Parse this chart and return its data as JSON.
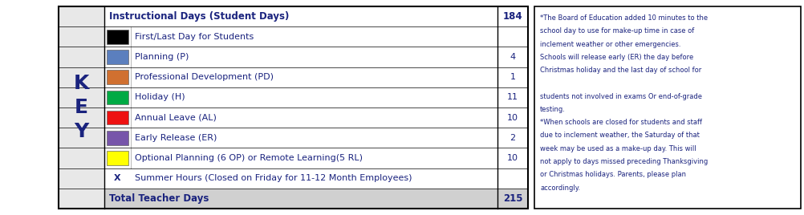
{
  "rows": [
    {
      "color": null,
      "label": "Instructional Days (Student Days)",
      "value": "184",
      "bold": true,
      "bg": "#ffffff",
      "has_swatch": false
    },
    {
      "color": "#000000",
      "label": "First/Last Day for Students",
      "value": "",
      "bold": false,
      "bg": "#ffffff",
      "has_swatch": true
    },
    {
      "color": "#5b7fbe",
      "label": "Planning (P)",
      "value": "4",
      "bold": false,
      "bg": "#ffffff",
      "has_swatch": true
    },
    {
      "color": "#d07030",
      "label": "Professional Development (PD)",
      "value": "1",
      "bold": false,
      "bg": "#ffffff",
      "has_swatch": true
    },
    {
      "color": "#00aa44",
      "label": "Holiday (H)",
      "value": "11",
      "bold": false,
      "bg": "#ffffff",
      "has_swatch": true
    },
    {
      "color": "#ee1111",
      "label": "Annual Leave (AL)",
      "value": "10",
      "bold": false,
      "bg": "#ffffff",
      "has_swatch": true
    },
    {
      "color": "#7755aa",
      "label": "Early Release (ER)",
      "value": "2",
      "bold": false,
      "bg": "#ffffff",
      "has_swatch": true
    },
    {
      "color": "#ffff00",
      "label": "Optional Planning (6 OP) or Remote Learning(5 RL)",
      "value": "10",
      "bold": false,
      "bg": "#ffffff",
      "has_swatch": true
    },
    {
      "color": "X",
      "label": "Summer Hours (Closed on Friday for 11-12 Month Employees)",
      "value": "",
      "bold": false,
      "bg": "#ffffff",
      "has_swatch": false
    },
    {
      "color": null,
      "label": "Total Teacher Days",
      "value": "215",
      "bold": true,
      "bg": "#d0d0d0",
      "has_swatch": false
    }
  ],
  "key_bg": "#e8e8e8",
  "note_lines": [
    {
      "text": "*The Board of Education added 10 minutes to the",
      "style": "normal"
    },
    {
      "text": "school day to use for make-up time in case of",
      "style": "normal"
    },
    {
      "text": "inclement weather or other emergencies.",
      "style": "normal"
    },
    {
      "text": "Schools will release early (ER) the day before",
      "style": "normal"
    },
    {
      "text": "Christmas holiday and the last day of school for",
      "style": "normal"
    },
    {
      "text": "",
      "style": "normal"
    },
    {
      "text": "students not involved in exams Or end-of-grade",
      "style": "normal"
    },
    {
      "text": "testing.",
      "style": "normal"
    },
    {
      "text": "*When schools are closed for students and staff",
      "style": "normal"
    },
    {
      "text": "due to inclement weather, the Saturday of that",
      "style": "normal"
    },
    {
      "text": "week may be used as a make-up day. This will",
      "style": "normal"
    },
    {
      "text": "not apply to days missed preceding Thanksgiving",
      "style": "normal"
    },
    {
      "text": "or Christmas holidays. Parents, please plan",
      "style": "normal"
    },
    {
      "text": "accordingly.",
      "style": "normal"
    }
  ],
  "text_color": "#1a237e",
  "border_color": "#000000",
  "bg_color": "#ffffff",
  "fig_width": 10.03,
  "fig_height": 2.68,
  "dpi": 100
}
